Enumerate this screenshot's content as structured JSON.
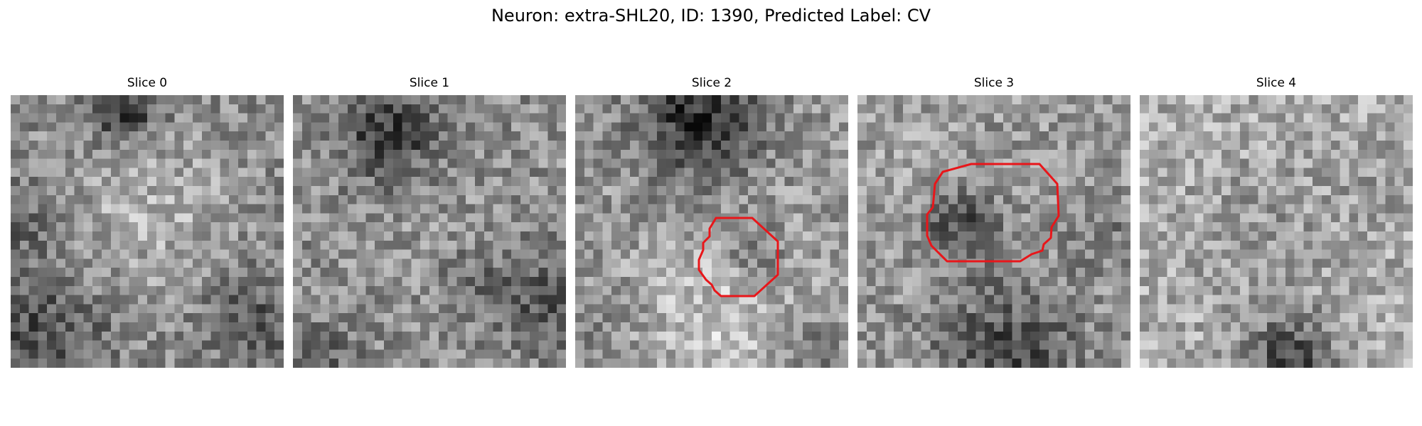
{
  "figure": {
    "title": "Neuron: extra-SHL20, ID: 1390, Predicted Label: CV",
    "contour_color": "#e8161a",
    "panels": [
      {
        "label": "Slice 0",
        "has_contour": false
      },
      {
        "label": "Slice 1",
        "has_contour": false
      },
      {
        "label": "Slice 2",
        "has_contour": true
      },
      {
        "label": "Slice 3",
        "has_contour": true
      },
      {
        "label": "Slice 4",
        "has_contour": false
      }
    ]
  }
}
